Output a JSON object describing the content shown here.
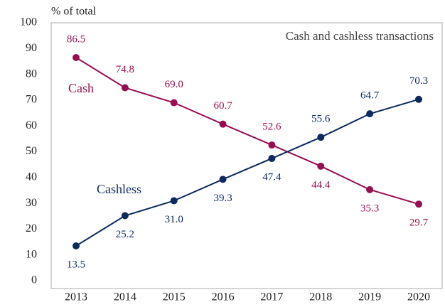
{
  "chart_data": {
    "type": "line",
    "title": "Cash and cashless transactions",
    "y_label": "% of total",
    "categories": [
      "2013",
      "2014",
      "2015",
      "2016",
      "2017",
      "2018",
      "2019",
      "2020"
    ],
    "series": [
      {
        "name": "Cash",
        "color": "#960f50",
        "values": [
          86.5,
          74.8,
          69.0,
          60.7,
          52.6,
          44.4,
          35.3,
          29.7
        ],
        "value_labels": [
          "86.5",
          "74.8",
          "69.0",
          "60.7",
          "52.6",
          "44.4",
          "35.3",
          "29.7"
        ]
      },
      {
        "name": "Cashless",
        "color": "#0d2a5c",
        "values": [
          13.5,
          25.2,
          31.0,
          39.3,
          47.4,
          55.6,
          64.7,
          70.3
        ],
        "value_labels": [
          "13.5",
          "25.2",
          "31.0",
          "39.3",
          "47.4",
          "55.6",
          "64.7",
          "70.3"
        ]
      }
    ],
    "ylim": [
      0,
      100
    ],
    "yticks": [
      0,
      10,
      20,
      30,
      40,
      50,
      60,
      70,
      80,
      90,
      100
    ]
  }
}
